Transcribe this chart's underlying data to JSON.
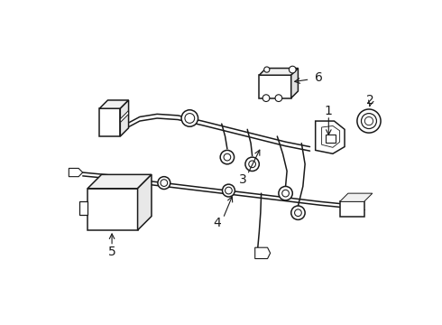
{
  "bg_color": "#ffffff",
  "line_color": "#1a1a1a",
  "lw": 1.1,
  "fig_width": 4.9,
  "fig_height": 3.6,
  "dpi": 100
}
